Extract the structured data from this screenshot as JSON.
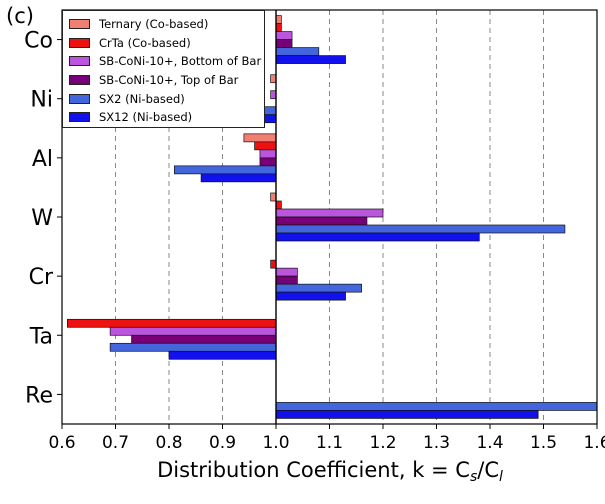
{
  "panel_label": "(c)",
  "colors": {
    "ternary": "#f28072",
    "crta": "#ee1111",
    "sb_bottom": "#bb55dd",
    "sb_top": "#770077",
    "sx2": "#4466dd",
    "sx12": "#1111ee"
  },
  "chart_data": {
    "type": "bar",
    "orientation": "horizontal",
    "baseline": 1.0,
    "categories": [
      "Co",
      "Ni",
      "Al",
      "W",
      "Cr",
      "Ta",
      "Re"
    ],
    "series": [
      {
        "name": "Ternary (Co-based)",
        "color_key": "ternary",
        "values": [
          1.01,
          0.99,
          0.94,
          0.99,
          null,
          null,
          null
        ]
      },
      {
        "name": "CrTa (Co-based)",
        "color_key": "crta",
        "values": [
          1.01,
          null,
          0.96,
          1.01,
          0.99,
          0.61,
          null
        ]
      },
      {
        "name": "SB-CoNi-10+, Bottom of Bar",
        "color_key": "sb_bottom",
        "values": [
          1.03,
          0.99,
          0.97,
          1.2,
          1.04,
          0.69,
          null
        ]
      },
      {
        "name": "SB-CoNi-10+, Top of Bar",
        "color_key": "sb_top",
        "values": [
          1.03,
          null,
          0.97,
          1.17,
          1.04,
          0.73,
          null
        ]
      },
      {
        "name": "SX2 (Ni-based)",
        "color_key": "sx2",
        "values": [
          1.08,
          0.94,
          0.81,
          1.54,
          1.16,
          0.69,
          1.6
        ]
      },
      {
        "name": "SX12 (Ni-based)",
        "color_key": "sx12",
        "values": [
          1.13,
          0.95,
          0.86,
          1.38,
          1.13,
          0.8,
          1.49
        ]
      }
    ],
    "xlim": [
      0.6,
      1.6
    ],
    "xticks": [
      "0.6",
      "0.7",
      "0.8",
      "0.9",
      "1.0",
      "1.1",
      "1.2",
      "1.3",
      "1.4",
      "1.5",
      "1.6"
    ],
    "xlabel_prefix": "Distribution Coefficient, k = C",
    "xlabel_sub1": "s",
    "xlabel_mid": "/C",
    "xlabel_sub2": "l",
    "grid": "vertical dashed",
    "legend_position": "top-left"
  }
}
